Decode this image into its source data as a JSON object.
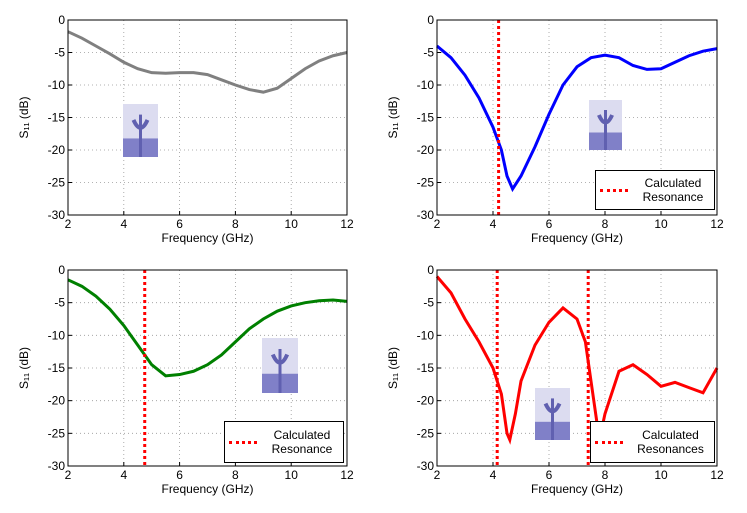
{
  "chart_data": [
    {
      "type": "line",
      "xlabel": "Frequency (GHz)",
      "ylabel": "S₁₁ (dB)",
      "xlim": [
        2,
        12
      ],
      "ylim": [
        -30,
        0
      ],
      "xticks": [
        2,
        4,
        6,
        8,
        10,
        12
      ],
      "yticks": [
        0,
        -5,
        -10,
        -15,
        -20,
        -25,
        -30
      ],
      "grid": true,
      "x": [
        2,
        2.5,
        3,
        3.5,
        4,
        4.5,
        5,
        5.5,
        6,
        6.5,
        7,
        7.5,
        8,
        8.5,
        9,
        9.5,
        10,
        10.5,
        11,
        11.5,
        12
      ],
      "series": [
        {
          "color": "#808080",
          "values": [
            -1.8,
            -2.8,
            -4,
            -5.2,
            -6.5,
            -7.5,
            -8.1,
            -8.2,
            -8.1,
            -8.1,
            -8.4,
            -9.2,
            -10,
            -10.7,
            -11.1,
            -10.5,
            -9,
            -7.5,
            -6.3,
            -5.5,
            -5
          ]
        }
      ]
    },
    {
      "type": "line",
      "xlabel": "Frequency (GHz)",
      "ylabel": "S₁₁ (dB)",
      "xlim": [
        2,
        12
      ],
      "ylim": [
        -30,
        0
      ],
      "xticks": [
        2,
        4,
        6,
        8,
        10,
        12
      ],
      "yticks": [
        0,
        -5,
        -10,
        -15,
        -20,
        -25,
        -30
      ],
      "grid": true,
      "x": [
        2,
        2.5,
        3,
        3.5,
        4,
        4.3,
        4.5,
        4.7,
        5,
        5.5,
        6,
        6.5,
        7,
        7.5,
        8,
        8.5,
        9,
        9.5,
        10,
        10.5,
        11,
        11.5,
        12
      ],
      "series": [
        {
          "color": "#0000ff",
          "values": [
            -4,
            -5.8,
            -8.5,
            -12,
            -16.5,
            -20,
            -24,
            -26,
            -24,
            -19.5,
            -14.5,
            -10,
            -7.2,
            -5.8,
            -5.4,
            -5.8,
            -7,
            -7.6,
            -7.5,
            -6.5,
            -5.5,
            -4.8,
            -4.4
          ]
        }
      ],
      "resonances": {
        "name": "Calculated Resonance",
        "color": "#ff0000",
        "x": [
          4.2
        ]
      }
    },
    {
      "type": "line",
      "xlabel": "Frequency (GHz)",
      "ylabel": "S₁₁ (dB)",
      "xlim": [
        2,
        12
      ],
      "ylim": [
        -30,
        0
      ],
      "xticks": [
        2,
        4,
        6,
        8,
        10,
        12
      ],
      "yticks": [
        0,
        -5,
        -10,
        -15,
        -20,
        -25,
        -30
      ],
      "grid": true,
      "x": [
        2,
        2.5,
        3,
        3.5,
        4,
        4.5,
        5,
        5.5,
        6,
        6.5,
        7,
        7.5,
        8,
        8.5,
        9,
        9.5,
        10,
        10.5,
        11,
        11.5,
        12
      ],
      "series": [
        {
          "color": "#008000",
          "values": [
            -1.5,
            -2.5,
            -4,
            -6,
            -8.5,
            -11.5,
            -14.5,
            -16.2,
            -16,
            -15.5,
            -14.5,
            -13,
            -11,
            -9,
            -7.5,
            -6.3,
            -5.5,
            -5,
            -4.7,
            -4.6,
            -4.8
          ]
        }
      ],
      "resonances": {
        "name": "Calculated Resonance",
        "color": "#ff0000",
        "x": [
          4.75
        ]
      }
    },
    {
      "type": "line",
      "xlabel": "Frequency (GHz)",
      "ylabel": "S₁₁ (dB)",
      "xlim": [
        2,
        12
      ],
      "ylim": [
        -30,
        0
      ],
      "xticks": [
        2,
        4,
        6,
        8,
        10,
        12
      ],
      "yticks": [
        0,
        -5,
        -10,
        -15,
        -20,
        -25,
        -30
      ],
      "grid": true,
      "x": [
        2,
        2.5,
        3,
        3.5,
        4,
        4.3,
        4.5,
        4.6,
        4.8,
        5,
        5.5,
        6,
        6.5,
        7,
        7.3,
        7.6,
        7.8,
        8,
        8.5,
        9,
        9.5,
        10,
        10.5,
        11,
        11.5,
        12
      ],
      "series": [
        {
          "color": "#ff0000",
          "values": [
            -1,
            -3.5,
            -7.5,
            -11,
            -15,
            -19,
            -25,
            -26,
            -22,
            -17,
            -11.5,
            -8,
            -5.8,
            -7.5,
            -11,
            -20,
            -26,
            -22,
            -15.5,
            -14.5,
            -16,
            -17.8,
            -17.2,
            -18,
            -18.8,
            -15
          ]
        }
      ],
      "resonances": {
        "name": "Calculated Resonances",
        "color": "#ff0000",
        "x": [
          4.15,
          7.4
        ]
      }
    }
  ]
}
